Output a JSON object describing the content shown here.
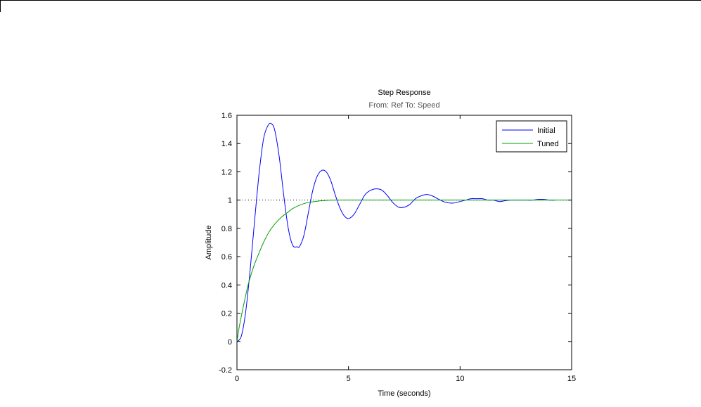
{
  "chart_data": {
    "type": "line",
    "title": "Step Response",
    "subtitle": "From: Ref  To: Speed",
    "xlabel": "Time (seconds)",
    "ylabel": "Amplitude",
    "xlim": [
      0,
      15
    ],
    "ylim": [
      -0.2,
      1.6
    ],
    "xticks": [
      0,
      5,
      10,
      15
    ],
    "yticks": [
      -0.2,
      0,
      0.2,
      0.4,
      0.6,
      0.8,
      1,
      1.2,
      1.4,
      1.6
    ],
    "xtick_labels": [
      "0",
      "5",
      "10",
      "15"
    ],
    "ytick_labels": [
      "-0.2",
      "0",
      "0.2",
      "0.4",
      "0.6",
      "0.8",
      "1",
      "1.2",
      "1.4",
      "1.6"
    ],
    "grid": false,
    "legend": {
      "placement": "top-right"
    },
    "reference_line": {
      "y": 1,
      "style": "dotted",
      "x_range": [
        0,
        15
      ]
    },
    "series": [
      {
        "name": "Initial",
        "color": "#0000ff",
        "x": [
          0,
          0.2,
          0.4,
          0.6,
          0.8,
          1.0,
          1.2,
          1.4,
          1.55,
          1.7,
          1.9,
          2.1,
          2.3,
          2.5,
          2.7,
          2.8,
          3.0,
          3.2,
          3.4,
          3.6,
          3.8,
          4.0,
          4.2,
          4.4,
          4.6,
          4.8,
          5.0,
          5.25,
          5.5,
          5.75,
          6.0,
          6.25,
          6.5,
          6.75,
          7.0,
          7.25,
          7.5,
          7.75,
          8.0,
          8.25,
          8.5,
          8.75,
          9.0,
          9.25,
          9.5,
          9.75,
          10.0,
          10.25,
          10.5,
          10.75,
          11.0,
          11.25,
          11.5,
          11.75,
          12.0,
          12.25,
          12.5,
          12.75,
          13.0,
          13.25,
          13.5,
          13.75,
          14.0,
          14.25
        ],
        "y": [
          0,
          0.04,
          0.22,
          0.52,
          0.87,
          1.2,
          1.44,
          1.53,
          1.54,
          1.49,
          1.3,
          1.03,
          0.8,
          0.68,
          0.67,
          0.67,
          0.75,
          0.91,
          1.07,
          1.17,
          1.21,
          1.2,
          1.14,
          1.04,
          0.95,
          0.89,
          0.87,
          0.9,
          0.97,
          1.04,
          1.07,
          1.08,
          1.07,
          1.03,
          0.98,
          0.95,
          0.95,
          0.97,
          1.01,
          1.03,
          1.04,
          1.03,
          1.01,
          0.99,
          0.98,
          0.98,
          0.99,
          1.0,
          1.01,
          1.01,
          1.01,
          1.0,
          1.0,
          0.99,
          0.995,
          1.0,
          1.0,
          1.0,
          1.0,
          1.0,
          1.005,
          1.005,
          1.0,
          1.0
        ]
      },
      {
        "name": "Tuned",
        "color": "#00a000",
        "x": [
          0,
          0.1,
          0.25,
          0.5,
          0.75,
          1.0,
          1.25,
          1.5,
          1.75,
          2.0,
          2.25,
          2.5,
          2.75,
          3.0,
          3.25,
          3.5,
          3.75,
          4.0,
          4.5,
          5.0,
          6.0,
          7.0,
          8.0,
          10.0,
          12.0,
          15.0
        ],
        "y": [
          0,
          0.1,
          0.22,
          0.4,
          0.53,
          0.63,
          0.72,
          0.79,
          0.84,
          0.88,
          0.91,
          0.94,
          0.96,
          0.975,
          0.985,
          0.99,
          0.995,
          0.998,
          1.0,
          1.0,
          1.0,
          1.0,
          1.0,
          1.0,
          1.0,
          1.0
        ]
      }
    ]
  }
}
